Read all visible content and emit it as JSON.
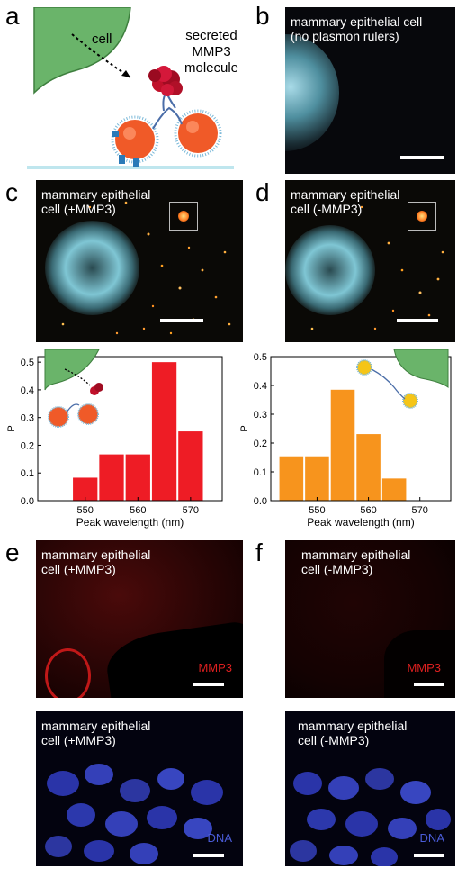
{
  "panel_labels": {
    "a": "a",
    "b": "b",
    "c": "c",
    "d": "d",
    "e": "e",
    "f": "f"
  },
  "panel_a": {
    "cell_label": "cell",
    "molecule_label_1": "secreted",
    "molecule_label_2": "MMP3",
    "molecule_label_3": "molecule"
  },
  "panel_b": {
    "line1": "mammary epithelial cell",
    "line2": "(no plasmon rulers)"
  },
  "panel_c_img": {
    "line1": "mammary epithelial",
    "line2": "cell (+MMP3)"
  },
  "panel_d_img": {
    "line1": "mammary epithelial",
    "line2": "cell (-MMP3)"
  },
  "panel_e_top": {
    "line1": "mammary epithelial",
    "line2": "cell (+MMP3)",
    "stain": "MMP3"
  },
  "panel_e_bottom": {
    "line1": "mammary epithelial",
    "line2": "cell (+MMP3)",
    "stain": "DNA"
  },
  "panel_f_top": {
    "line1": "mammary epithelial",
    "line2": "cell (-MMP3)",
    "stain": "MMP3"
  },
  "panel_f_bottom": {
    "line1": "mammary epithelial",
    "line2": "cell (-MMP3)",
    "stain": "DNA"
  },
  "colors": {
    "red_bar": "#ee1c25",
    "orange_bar": "#f7941d",
    "cell_green": "#6ab46a",
    "mmp3_red": "#e02020",
    "dna_blue": "#4a5cd8"
  },
  "chart_data": [
    {
      "type": "bar",
      "panel": "c",
      "xlabel": "Peak wavelength (nm)",
      "ylabel": "P",
      "xlim": [
        541,
        576
      ],
      "ylim": [
        0,
        0.52
      ],
      "xticks": [
        550,
        560,
        570
      ],
      "yticks": [
        "0.0",
        "0.1",
        "0.2",
        "0.3",
        "0.4",
        "0.5"
      ],
      "bin_width": 5,
      "x": [
        550,
        555,
        560,
        565,
        570
      ],
      "values": [
        0.083,
        0.167,
        0.167,
        0.5,
        0.25
      ],
      "color": "#ee1c25"
    },
    {
      "type": "bar",
      "panel": "d",
      "xlabel": "Peak wavelength (nm)",
      "ylabel": "P",
      "xlim": [
        541,
        576
      ],
      "ylim": [
        0,
        0.5
      ],
      "xticks": [
        550,
        560,
        570
      ],
      "yticks": [
        "0.0",
        "0.1",
        "0.2",
        "0.3",
        "0.4",
        "0.5"
      ],
      "bin_width": 5,
      "x": [
        545,
        550,
        555,
        560,
        565
      ],
      "values": [
        0.154,
        0.154,
        0.385,
        0.231,
        0.077
      ],
      "color": "#f7941d"
    }
  ]
}
